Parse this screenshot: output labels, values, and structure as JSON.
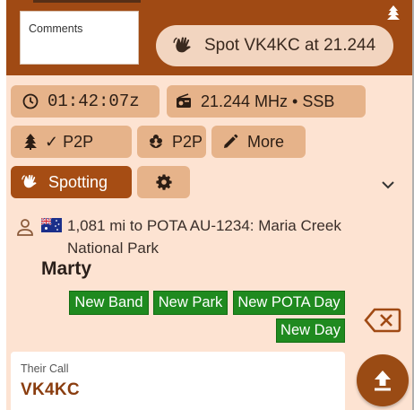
{
  "header": {
    "comments_placeholder": "Comments",
    "spot_button_label": "Spot VK4KC at 21.244"
  },
  "chips": {
    "time": "01:42:07z",
    "frequency": "21.244 MHz • SSB",
    "p2p_checked_label": "✓ P2P",
    "p2p_label": "P2P",
    "more_label": "More",
    "spotting_label": "Spotting"
  },
  "contact": {
    "location": "1,081 mi to POTA AU-1234: Maria Creek National Park",
    "name": "Marty",
    "badges": [
      "New Band",
      "New Park",
      "New POTA Day",
      "New Day"
    ]
  },
  "input": {
    "their_call_label": "Their Call",
    "their_call_value": "VK4KC"
  },
  "colors": {
    "brand": "#a04a14",
    "panel": "#fde3d2",
    "chip": "#e6b38a",
    "badge": "#1f8a1f"
  },
  "icons": [
    "tree-icon",
    "wave-hand-icon",
    "clock-icon",
    "radio-icon",
    "tree-check-icon",
    "flower-icon",
    "pencil-icon",
    "gear-icon",
    "chevron-down-icon",
    "person-icon",
    "australia-flag-icon",
    "backspace-icon",
    "upload-icon"
  ]
}
